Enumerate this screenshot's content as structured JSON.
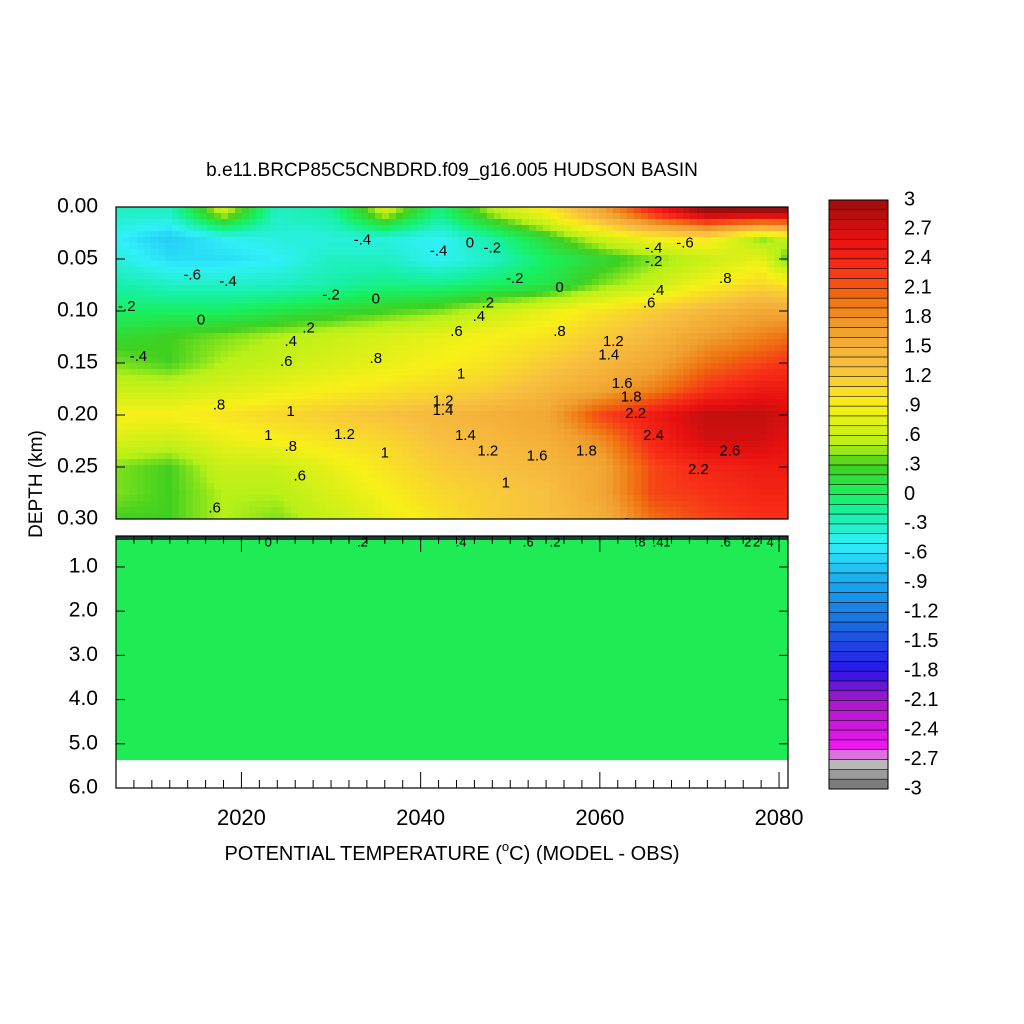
{
  "chart_data": {
    "type": "heatmap",
    "title": "b.e11.BRCP85C5CNBDRD.f09_g16.005 HUDSON BASIN",
    "xlabel_prefix": "POTENTIAL TEMPERATURE (",
    "xlabel_degree": "o",
    "xlabel_suffix": "C) (MODEL - OBS)",
    "ylabel": "DEPTH (km)",
    "x_range": [
      2006,
      2081
    ],
    "x_ticks": [
      {
        "value": 2020,
        "label": "2020"
      },
      {
        "value": 2040,
        "label": "2040"
      },
      {
        "value": 2060,
        "label": "2060"
      },
      {
        "value": 2080,
        "label": "2080"
      }
    ],
    "upper_panel": {
      "depth_range_km": [
        0.0,
        0.3
      ],
      "y_ticks": [
        {
          "value": 0.0,
          "label": "0.00"
        },
        {
          "value": 0.05,
          "label": "0.05"
        },
        {
          "value": 0.1,
          "label": "0.10"
        },
        {
          "value": 0.15,
          "label": "0.15"
        },
        {
          "value": 0.2,
          "label": "0.20"
        },
        {
          "value": 0.25,
          "label": "0.25"
        },
        {
          "value": 0.3,
          "label": "0.30"
        }
      ],
      "depth_levels_km": [
        0.005,
        0.03,
        0.05,
        0.075,
        0.1,
        0.125,
        0.15,
        0.175,
        0.2,
        0.225,
        0.25,
        0.275,
        0.3
      ],
      "year_columns": [
        2006,
        2012,
        2018,
        2024,
        2030,
        2036,
        2042,
        2048,
        2054,
        2060,
        2066,
        2072,
        2078,
        2081
      ],
      "values": [
        [
          -0.3,
          -0.3,
          0.6,
          -0.3,
          -0.2,
          0.6,
          -0.1,
          0.5,
          0.9,
          1.6,
          2.4,
          3.0,
          3.0,
          3.0
        ],
        [
          -0.5,
          -0.7,
          -0.5,
          -0.4,
          -0.4,
          -0.4,
          -0.5,
          -0.2,
          0.2,
          0.6,
          0.9,
          1.0,
          0.4,
          0.6
        ],
        [
          -0.4,
          -0.6,
          -0.6,
          -0.5,
          -0.3,
          -0.3,
          -0.5,
          -0.3,
          0.0,
          0.2,
          0.4,
          0.6,
          0.8,
          0.3
        ],
        [
          -0.2,
          -0.3,
          -0.3,
          -0.3,
          -0.2,
          -0.1,
          -0.1,
          0.0,
          0.1,
          0.4,
          0.6,
          0.9,
          1.1,
          1.0
        ],
        [
          0.0,
          0.0,
          0.0,
          0.1,
          0.2,
          0.3,
          0.4,
          0.6,
          0.8,
          1.0,
          1.2,
          1.4,
          1.6,
          1.6
        ],
        [
          0.2,
          0.3,
          0.4,
          0.5,
          0.6,
          0.7,
          0.8,
          0.9,
          1.0,
          1.2,
          1.4,
          1.7,
          1.9,
          2.0
        ],
        [
          0.4,
          0.3,
          0.5,
          0.6,
          0.7,
          0.8,
          0.9,
          1.0,
          1.2,
          1.4,
          1.6,
          2.0,
          2.2,
          2.3
        ],
        [
          0.6,
          0.6,
          0.7,
          0.8,
          0.9,
          1.0,
          1.1,
          1.2,
          1.4,
          1.6,
          1.9,
          2.3,
          2.5,
          2.5
        ],
        [
          0.9,
          0.9,
          1.0,
          1.1,
          1.2,
          1.3,
          1.4,
          1.5,
          1.6,
          2.2,
          2.5,
          2.8,
          2.8,
          2.7
        ],
        [
          0.7,
          0.6,
          0.8,
          0.9,
          1.0,
          1.1,
          1.3,
          1.4,
          1.5,
          1.8,
          2.4,
          2.7,
          2.7,
          2.6
        ],
        [
          0.4,
          0.3,
          0.6,
          0.6,
          0.8,
          1.0,
          1.2,
          1.3,
          1.4,
          1.6,
          2.2,
          2.4,
          2.5,
          2.5
        ],
        [
          0.4,
          0.3,
          0.5,
          0.5,
          0.7,
          0.9,
          1.1,
          1.2,
          1.3,
          1.6,
          2.2,
          2.3,
          2.4,
          2.4
        ],
        [
          0.3,
          0.3,
          0.5,
          0.4,
          0.6,
          0.8,
          1.0,
          1.2,
          1.3,
          1.5,
          2.0,
          2.2,
          2.3,
          2.3
        ]
      ],
      "contour_labels": [
        {
          "text": "-.6",
          "x": 2014.5,
          "y": 0.066
        },
        {
          "text": "-.4",
          "x": 2018.5,
          "y": 0.072
        },
        {
          "text": "-.2",
          "x": 2007.2,
          "y": 0.096
        },
        {
          "text": "0",
          "x": 2015.5,
          "y": 0.109
        },
        {
          "text": "-.4",
          "x": 2008.5,
          "y": 0.144
        },
        {
          "text": "-.4",
          "x": 2033.5,
          "y": 0.032
        },
        {
          "text": "-.2",
          "x": 2030.0,
          "y": 0.085
        },
        {
          "text": "0",
          "x": 2035.0,
          "y": 0.089
        },
        {
          "text": ".2",
          "x": 2027.5,
          "y": 0.117
        },
        {
          "text": ".4",
          "x": 2025.5,
          "y": 0.13
        },
        {
          "text": ".6",
          "x": 2025.0,
          "y": 0.149
        },
        {
          "text": ".8",
          "x": 2035.0,
          "y": 0.146
        },
        {
          "text": "-.4",
          "x": 2042.0,
          "y": 0.043
        },
        {
          "text": "0",
          "x": 2045.5,
          "y": 0.035
        },
        {
          "text": "-.2",
          "x": 2048.0,
          "y": 0.04
        },
        {
          "text": "-.2",
          "x": 2050.5,
          "y": 0.069
        },
        {
          "text": ".2",
          "x": 2047.5,
          "y": 0.093
        },
        {
          "text": ".4",
          "x": 2046.5,
          "y": 0.106
        },
        {
          "text": ".6",
          "x": 2044.0,
          "y": 0.12
        },
        {
          "text": "0",
          "x": 2055.5,
          "y": 0.078
        },
        {
          "text": ".8",
          "x": 2055.5,
          "y": 0.12
        },
        {
          "text": "1",
          "x": 2044.5,
          "y": 0.161
        },
        {
          "text": "1.2",
          "x": 2042.5,
          "y": 0.187
        },
        {
          "text": "1.4",
          "x": 2042.5,
          "y": 0.196
        },
        {
          "text": "1.4",
          "x": 2045.0,
          "y": 0.22
        },
        {
          "text": "1.2",
          "x": 2047.5,
          "y": 0.235
        },
        {
          "text": "1",
          "x": 2049.5,
          "y": 0.266
        },
        {
          "text": "1.6",
          "x": 2053.0,
          "y": 0.24
        },
        {
          "text": "1.8",
          "x": 2058.5,
          "y": 0.235
        },
        {
          "text": ".8",
          "x": 2017.5,
          "y": 0.191
        },
        {
          "text": "1",
          "x": 2025.5,
          "y": 0.197
        },
        {
          "text": "1.2",
          "x": 2031.5,
          "y": 0.219
        },
        {
          "text": "1",
          "x": 2036.0,
          "y": 0.237
        },
        {
          "text": "1",
          "x": 2023.0,
          "y": 0.22
        },
        {
          "text": ".8",
          "x": 2025.5,
          "y": 0.231
        },
        {
          "text": ".6",
          "x": 2026.5,
          "y": 0.259
        },
        {
          "text": ".6",
          "x": 2017.0,
          "y": 0.29
        },
        {
          "text": "1.2",
          "x": 2061.5,
          "y": 0.13
        },
        {
          "text": "1.4",
          "x": 2061.0,
          "y": 0.143
        },
        {
          "text": "1.6",
          "x": 2062.5,
          "y": 0.17
        },
        {
          "text": "1.8",
          "x": 2063.5,
          "y": 0.183
        },
        {
          "text": "2.2",
          "x": 2064.0,
          "y": 0.199
        },
        {
          "text": "2.4",
          "x": 2066.0,
          "y": 0.22
        },
        {
          "text": "2.2",
          "x": 2071.0,
          "y": 0.253
        },
        {
          "text": "2.6",
          "x": 2074.5,
          "y": 0.235
        },
        {
          "text": "2",
          "x": 2063.0,
          "y": 0.305
        },
        {
          "text": ".6",
          "x": 2065.5,
          "y": 0.093
        },
        {
          "text": ".4",
          "x": 2066.5,
          "y": 0.081
        },
        {
          "text": "-.2",
          "x": 2066.0,
          "y": 0.053
        },
        {
          "text": "-.4",
          "x": 2066.0,
          "y": 0.04
        },
        {
          "text": "-.6",
          "x": 2069.5,
          "y": 0.035
        },
        {
          "text": ".8",
          "x": 2074.0,
          "y": 0.069
        }
      ]
    },
    "lower_panel": {
      "depth_range_km": [
        0.3,
        6.0
      ],
      "y_ticks": [
        {
          "value": 1.0,
          "label": "1.0"
        },
        {
          "value": 2.0,
          "label": "2.0"
        },
        {
          "value": 3.0,
          "label": "3.0"
        },
        {
          "value": 4.0,
          "label": "4.0"
        },
        {
          "value": 5.0,
          "label": "5.0"
        },
        {
          "value": 6.0,
          "label": "6.0"
        }
      ],
      "filled_to_depth_km": 5.37,
      "fill_value": 0.05,
      "contour_labels": [
        {
          "text": "0",
          "x": 2023.0
        },
        {
          "text": ".2",
          "x": 2033.5
        },
        {
          "text": ".4",
          "x": 2044.5
        },
        {
          "text": ".6",
          "x": 2052.0
        },
        {
          "text": ".2",
          "x": 2055.0
        },
        {
          "text": ".8",
          "x": 2064.5
        },
        {
          "text": ".4",
          "x": 2066.5
        },
        {
          "text": "1",
          "x": 2067.5
        },
        {
          "text": ".6",
          "x": 2074.0
        },
        {
          "text": "2",
          "x": 2076.5
        },
        {
          "text": "2",
          "x": 2077.5
        },
        {
          "text": "4",
          "x": 2079.0
        }
      ]
    },
    "colorbar": {
      "range": [
        -3,
        3
      ],
      "labels": [
        "3",
        "2.7",
        "2.4",
        "2.1",
        "1.8",
        "1.5",
        "1.2",
        ".9",
        ".6",
        ".3",
        "0",
        "-.3",
        "-.6",
        "-.9",
        "-1.2",
        "-1.5",
        "-1.8",
        "-2.1",
        "-2.4",
        "-2.7",
        "-3"
      ],
      "palette": [
        {
          "v": -3.0,
          "c": "#6e6e6e"
        },
        {
          "v": -2.7,
          "c": "#c8c8c8"
        },
        {
          "v": -2.6,
          "c": "#f018f0"
        },
        {
          "v": -2.1,
          "c": "#a818c8"
        },
        {
          "v": -1.8,
          "c": "#2a14e6"
        },
        {
          "v": -1.3,
          "c": "#1870e0"
        },
        {
          "v": -0.9,
          "c": "#18a8f0"
        },
        {
          "v": -0.5,
          "c": "#30f0f8"
        },
        {
          "v": -0.2,
          "c": "#18f0a8"
        },
        {
          "v": 0.0,
          "c": "#18f060"
        },
        {
          "v": 0.3,
          "c": "#40d020"
        },
        {
          "v": 0.5,
          "c": "#b8f018"
        },
        {
          "v": 0.9,
          "c": "#f8f018"
        },
        {
          "v": 1.3,
          "c": "#f8c040"
        },
        {
          "v": 1.7,
          "c": "#f0a030"
        },
        {
          "v": 2.0,
          "c": "#f07010"
        },
        {
          "v": 2.3,
          "c": "#f83018"
        },
        {
          "v": 2.6,
          "c": "#e81010"
        },
        {
          "v": 3.0,
          "c": "#9a0e0e"
        }
      ]
    }
  }
}
